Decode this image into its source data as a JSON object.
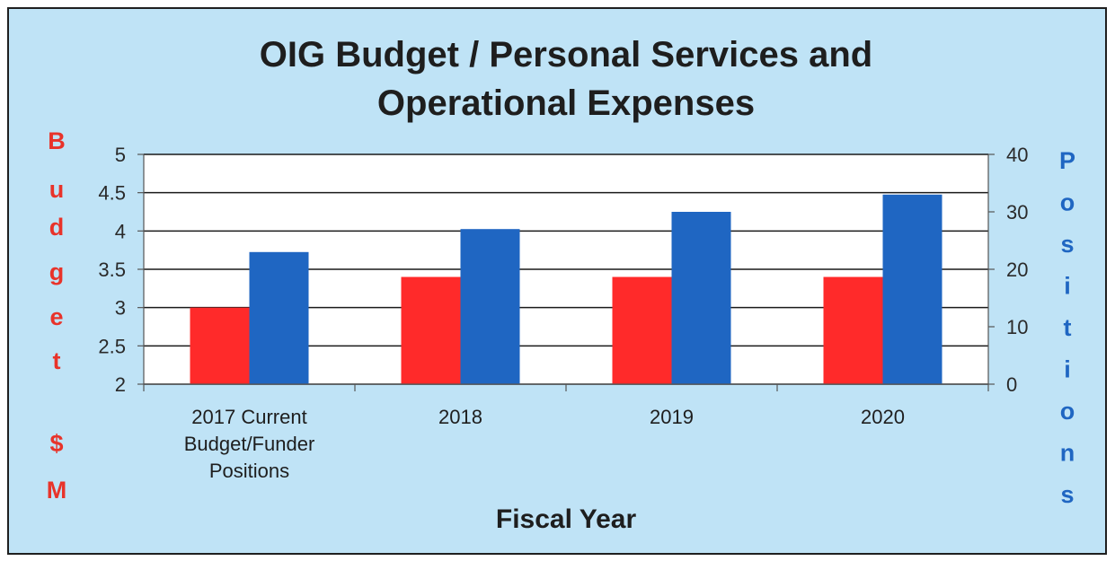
{
  "chart_data": {
    "type": "bar",
    "title_lines": [
      "OIG Budget / Personal Services and",
      "Operational Expenses"
    ],
    "xlabel": "Fiscal Year",
    "ylabel_left": "Budget $M",
    "ylabel_right": "Positions",
    "categories": [
      [
        "2017 Current",
        "Budget/Funder",
        "Positions"
      ],
      [
        "2018"
      ],
      [
        "2019"
      ],
      [
        "2020"
      ]
    ],
    "left_axis": {
      "min": 2,
      "max": 5,
      "ticks": [
        "2",
        "2.5",
        "3",
        "3.5",
        "4",
        "4.5",
        "5"
      ]
    },
    "right_axis": {
      "min": 0,
      "max": 40,
      "ticks": [
        "0",
        "10",
        "20",
        "30",
        "40"
      ]
    },
    "series": [
      {
        "axis": "left",
        "values": [
          3.0,
          3.4,
          3.4,
          3.4
        ],
        "color": "#ff2a2a"
      },
      {
        "axis": "right",
        "values": [
          23,
          27,
          30,
          33
        ],
        "color": "#1f66c2"
      }
    ],
    "grid": true,
    "legend": "none",
    "colors": {
      "left_axis_label": "#e8332a",
      "right_axis_label": "#1f66c2",
      "background": "#bfe3f6",
      "plot_area": "#ffffff"
    }
  }
}
